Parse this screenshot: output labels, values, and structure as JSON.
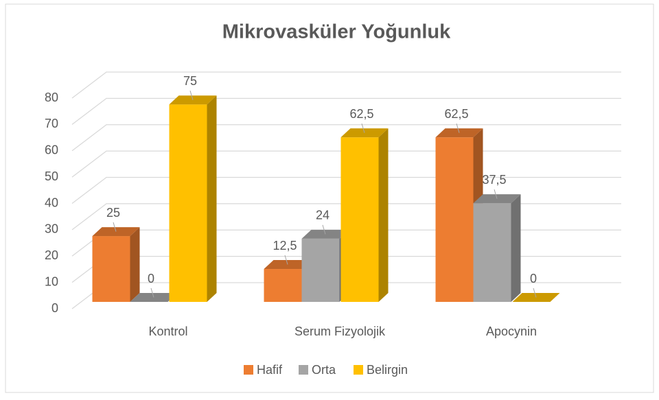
{
  "chart_data": {
    "type": "bar3d",
    "title": "Mikrovasküler Yoğunluk",
    "categories": [
      "Kontrol",
      "Serum Fizyolojik",
      "Apocynin"
    ],
    "series": [
      {
        "name": "Hafif",
        "color": "#ED7D31",
        "values": [
          25,
          12.5,
          62.5
        ],
        "value_labels": [
          "25",
          "12,5",
          "62,5"
        ]
      },
      {
        "name": "Orta",
        "color": "#A5A5A5",
        "values": [
          0,
          24,
          37.5
        ],
        "value_labels": [
          "0",
          "24",
          "37,5"
        ]
      },
      {
        "name": "Belirgin",
        "color": "#FFC000",
        "values": [
          75,
          62.5,
          0
        ],
        "value_labels": [
          "75",
          "62,5",
          "0"
        ]
      }
    ],
    "ylim": [
      0,
      80
    ],
    "yticks": [
      0,
      10,
      20,
      30,
      40,
      50,
      60,
      70,
      80
    ],
    "grid": true,
    "legend": "bottom"
  }
}
